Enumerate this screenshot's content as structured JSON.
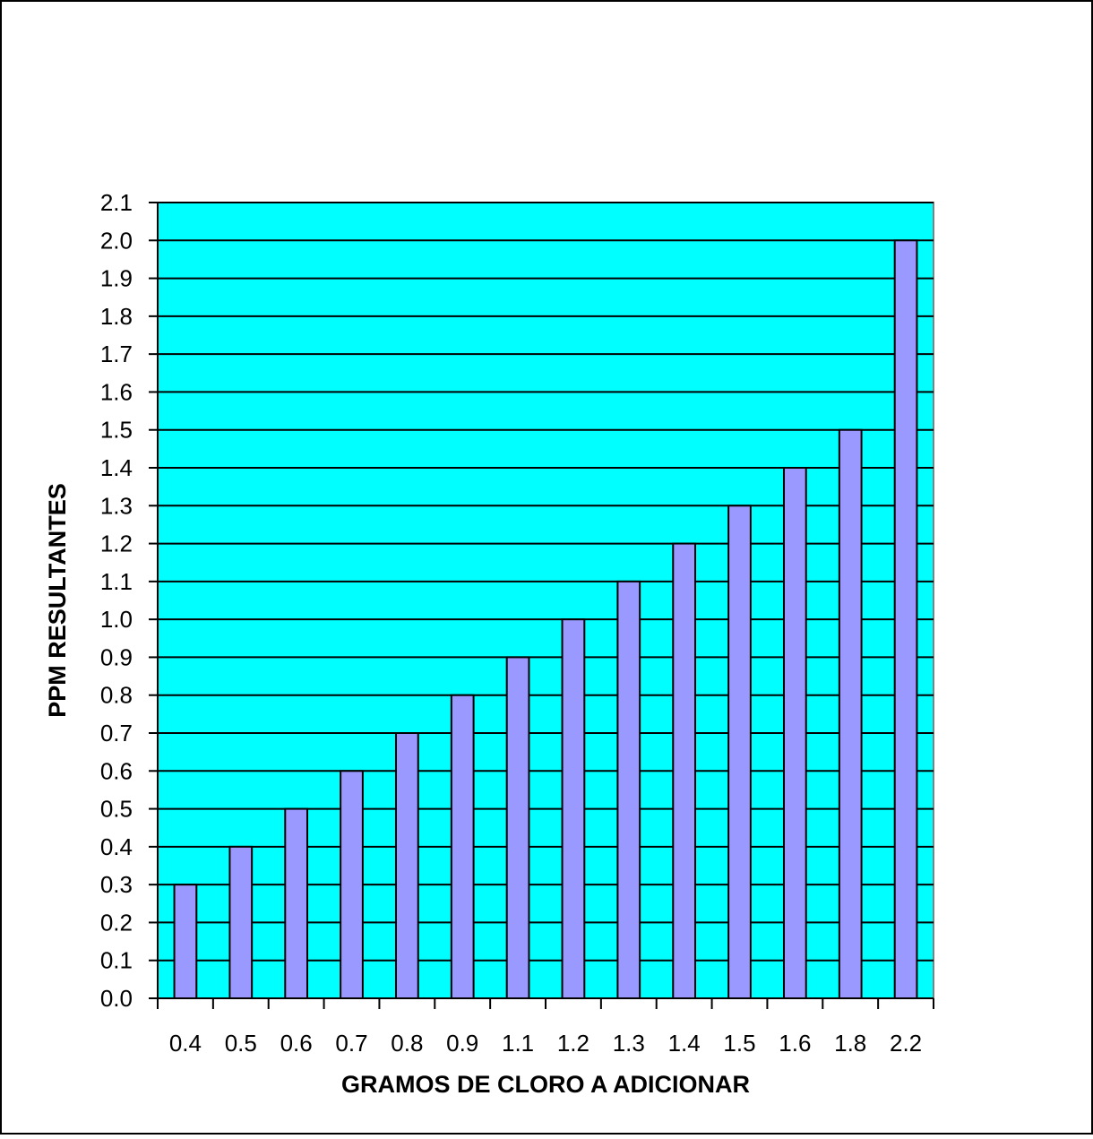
{
  "chart_data": {
    "type": "bar",
    "title": "",
    "xlabel": "GRAMOS DE CLORO A ADICIONAR",
    "ylabel": "PPM  RESULTANTES",
    "categories": [
      "0.4",
      "0.5",
      "0.6",
      "0.7",
      "0.8",
      "0.9",
      "1.1",
      "1.2",
      "1.3",
      "1.4",
      "1.5",
      "1.6",
      "1.8",
      "2.2"
    ],
    "values": [
      0.3,
      0.4,
      0.5,
      0.6,
      0.7,
      0.8,
      0.9,
      1.0,
      1.1,
      1.2,
      1.3,
      1.4,
      1.5,
      2.0
    ],
    "ylim": [
      0,
      2.1
    ],
    "yticks": [
      "0.0",
      "0.1",
      "0.2",
      "0.3",
      "0.4",
      "0.5",
      "0.6",
      "0.7",
      "0.8",
      "0.9",
      "1.0",
      "1.1",
      "1.2",
      "1.3",
      "1.4",
      "1.5",
      "1.6",
      "1.7",
      "1.8",
      "1.9",
      "2.0",
      "2.1"
    ],
    "grid": true,
    "legend": "none",
    "colors": {
      "plot_background": "#00FFFF",
      "bar_fill": "#9999FF",
      "bar_stroke": "#000000",
      "gridline": "#000000"
    }
  }
}
